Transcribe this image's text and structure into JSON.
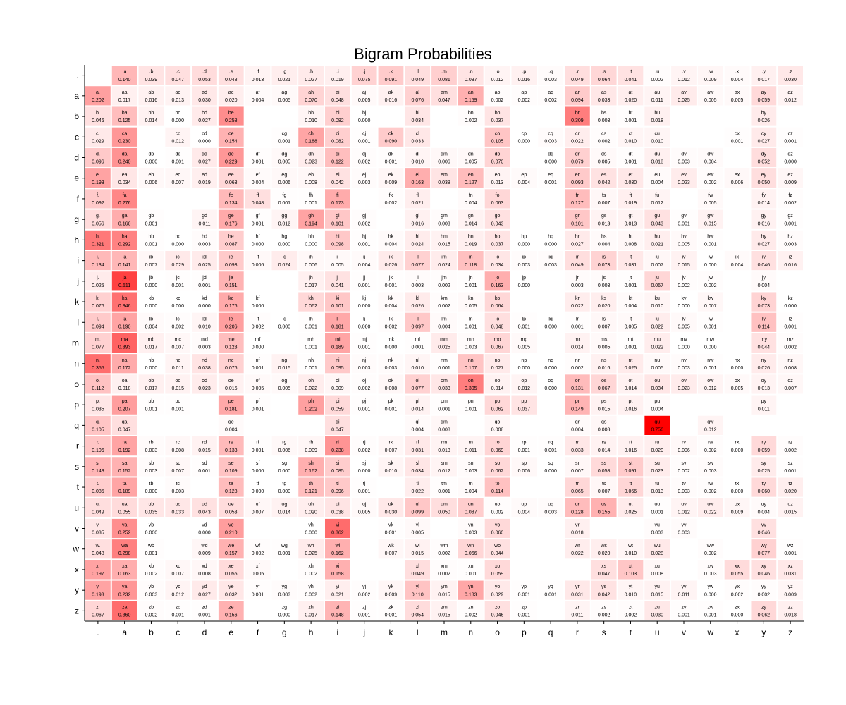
{
  "chart_data": {
    "type": "heatmap",
    "title": "Bigram Probabilities",
    "labels": [
      ".",
      "a",
      "b",
      "c",
      "d",
      "e",
      "f",
      "g",
      "h",
      "i",
      "j",
      "k",
      "l",
      "m",
      "n",
      "o",
      "p",
      "q",
      "r",
      "s",
      "t",
      "u",
      "v",
      "w",
      "x",
      "y",
      "z"
    ],
    "colormap": {
      "low": "#ffffff",
      "high": "#ff0000"
    },
    "value_range": [
      0,
      0.756
    ],
    "matrix": [
      [
        null,
        0.14,
        0.039,
        0.047,
        0.053,
        0.048,
        0.013,
        0.021,
        0.027,
        0.019,
        0.075,
        0.091,
        0.049,
        0.081,
        0.037,
        0.012,
        0.016,
        0.003,
        0.049,
        0.064,
        0.041,
        0.002,
        0.012,
        0.009,
        0.004,
        0.017,
        0.03
      ],
      [
        0.202,
        0.017,
        0.016,
        0.013,
        0.03,
        0.02,
        0.004,
        0.005,
        0.07,
        0.048,
        0.005,
        0.016,
        0.076,
        0.047,
        0.159,
        0.002,
        0.002,
        0.002,
        0.094,
        0.033,
        0.02,
        0.011,
        0.025,
        0.005,
        0.005,
        0.059,
        0.012
      ],
      [
        0.046,
        0.125,
        0.014,
        0.0,
        0.027,
        0.258,
        null,
        null,
        0.01,
        0.082,
        0.0,
        null,
        0.034,
        null,
        0.002,
        0.037,
        null,
        null,
        0.309,
        0.003,
        0.001,
        0.018,
        null,
        null,
        null,
        0.026,
        null
      ],
      [
        0.029,
        0.23,
        null,
        0.012,
        0.0,
        0.154,
        null,
        0.001,
        0.188,
        0.082,
        0.001,
        0.09,
        0.033,
        null,
        null,
        0.105,
        0.0,
        0.003,
        0.022,
        0.002,
        0.01,
        0.01,
        null,
        null,
        0.001,
        0.027,
        0.001
      ],
      [
        0.096,
        0.24,
        0.0,
        0.001,
        0.027,
        0.229,
        0.001,
        0.005,
        0.023,
        0.122,
        0.002,
        0.001,
        0.01,
        0.006,
        0.005,
        0.07,
        null,
        0.0,
        0.079,
        0.005,
        0.001,
        0.018,
        0.003,
        0.004,
        null,
        0.052,
        0.0
      ],
      [
        0.193,
        0.034,
        0.006,
        0.007,
        0.019,
        0.063,
        0.004,
        0.006,
        0.008,
        0.042,
        0.003,
        0.009,
        0.163,
        0.038,
        0.127,
        0.013,
        0.004,
        0.001,
        0.093,
        0.042,
        0.03,
        0.004,
        0.023,
        0.002,
        0.006,
        0.05,
        0.009
      ],
      [
        0.092,
        0.276,
        null,
        null,
        null,
        0.134,
        0.048,
        0.001,
        0.001,
        0.173,
        null,
        0.002,
        0.021,
        null,
        0.004,
        0.063,
        null,
        null,
        0.127,
        0.007,
        0.019,
        0.012,
        null,
        0.005,
        null,
        0.014,
        0.002
      ],
      [
        0.056,
        0.166,
        0.001,
        null,
        0.011,
        0.176,
        0.001,
        0.012,
        0.194,
        0.101,
        0.002,
        null,
        0.016,
        0.003,
        0.014,
        0.043,
        null,
        null,
        0.101,
        0.013,
        0.013,
        0.043,
        0.001,
        0.015,
        null,
        0.016,
        0.001
      ],
      [
        0.321,
        0.292,
        0.001,
        0.0,
        0.003,
        0.087,
        0.0,
        0.0,
        0.0,
        0.098,
        0.001,
        0.004,
        0.024,
        0.015,
        0.019,
        0.037,
        0.0,
        0.0,
        0.027,
        0.004,
        0.008,
        0.021,
        0.005,
        0.001,
        null,
        0.027,
        0.003
      ],
      [
        0.134,
        0.141,
        0.007,
        0.029,
        0.025,
        0.093,
        0.006,
        0.024,
        0.006,
        0.005,
        0.004,
        0.026,
        0.077,
        0.024,
        0.118,
        0.034,
        0.003,
        0.003,
        0.049,
        0.073,
        0.031,
        0.007,
        0.015,
        0.0,
        0.004,
        0.046,
        0.016
      ],
      [
        0.025,
        0.511,
        0.0,
        0.001,
        0.001,
        0.151,
        null,
        null,
        0.017,
        0.041,
        0.001,
        0.001,
        0.003,
        0.002,
        0.001,
        0.163,
        0.0,
        null,
        0.003,
        0.003,
        0.001,
        0.067,
        0.002,
        0.002,
        null,
        0.004,
        null
      ],
      [
        0.076,
        0.346,
        0.0,
        0.0,
        0.0,
        0.176,
        0.0,
        null,
        0.062,
        0.101,
        0.0,
        0.004,
        0.026,
        0.002,
        0.005,
        0.064,
        null,
        null,
        0.022,
        0.02,
        0.004,
        0.01,
        0.0,
        0.007,
        null,
        0.073,
        0.0
      ],
      [
        0.094,
        0.19,
        0.004,
        0.002,
        0.01,
        0.206,
        0.002,
        0.0,
        0.001,
        0.181,
        0.0,
        0.002,
        0.097,
        0.004,
        0.001,
        0.048,
        0.001,
        0.0,
        0.001,
        0.007,
        0.005,
        0.022,
        0.005,
        0.001,
        null,
        0.114,
        0.001
      ],
      [
        0.077,
        0.393,
        0.017,
        0.007,
        0.003,
        0.123,
        0.0,
        null,
        0.001,
        0.189,
        0.001,
        0.0,
        0.001,
        0.025,
        0.003,
        0.067,
        0.005,
        null,
        0.014,
        0.005,
        0.001,
        0.022,
        0.0,
        0.0,
        null,
        0.044,
        0.002
      ],
      [
        0.355,
        0.172,
        0.0,
        0.011,
        0.038,
        0.076,
        0.001,
        0.015,
        0.001,
        0.095,
        0.003,
        0.003,
        0.01,
        0.001,
        0.107,
        0.027,
        0.0,
        0.0,
        0.002,
        0.016,
        0.025,
        0.005,
        0.003,
        0.001,
        0.0,
        0.026,
        0.008
      ],
      [
        0.112,
        0.018,
        0.017,
        0.015,
        0.023,
        0.016,
        0.005,
        0.005,
        0.022,
        0.009,
        0.002,
        0.008,
        0.077,
        0.033,
        0.305,
        0.014,
        0.012,
        0.0,
        0.131,
        0.067,
        0.014,
        0.034,
        0.023,
        0.012,
        0.005,
        0.013,
        0.007
      ],
      [
        0.035,
        0.207,
        0.001,
        0.001,
        null,
        0.181,
        0.001,
        null,
        0.202,
        0.059,
        0.001,
        0.001,
        0.014,
        0.001,
        0.001,
        0.062,
        0.037,
        null,
        0.149,
        0.015,
        0.016,
        0.004,
        null,
        null,
        null,
        0.011,
        null
      ],
      [
        0.105,
        0.047,
        null,
        null,
        null,
        0.004,
        null,
        null,
        null,
        0.047,
        null,
        null,
        0.004,
        0.008,
        null,
        0.008,
        null,
        null,
        0.004,
        0.008,
        null,
        0.756,
        null,
        0.012,
        null,
        null,
        null
      ],
      [
        0.106,
        0.192,
        0.003,
        0.008,
        0.015,
        0.133,
        0.001,
        0.006,
        0.009,
        0.238,
        0.002,
        0.007,
        0.031,
        0.013,
        0.011,
        0.069,
        0.001,
        0.001,
        0.033,
        0.014,
        0.016,
        0.02,
        0.006,
        0.002,
        0.0,
        0.059,
        0.002
      ],
      [
        0.143,
        0.152,
        0.003,
        0.007,
        0.001,
        0.109,
        0.0,
        0.0,
        0.162,
        0.085,
        0.0,
        0.01,
        0.034,
        0.012,
        0.003,
        0.062,
        0.006,
        0.0,
        0.007,
        0.058,
        0.091,
        0.023,
        0.002,
        0.003,
        null,
        0.025,
        0.001
      ],
      [
        0.085,
        0.189,
        0.0,
        0.003,
        null,
        0.128,
        0.0,
        0.0,
        0.121,
        0.096,
        0.001,
        null,
        0.022,
        0.001,
        0.004,
        0.114,
        null,
        null,
        0.065,
        0.007,
        0.066,
        0.013,
        0.003,
        0.002,
        0.0,
        0.06,
        0.02
      ],
      [
        0.049,
        0.055,
        0.035,
        0.033,
        0.043,
        0.053,
        0.007,
        0.014,
        0.02,
        0.038,
        0.005,
        0.03,
        0.099,
        0.05,
        0.087,
        0.002,
        0.004,
        0.003,
        0.128,
        0.155,
        0.025,
        0.001,
        0.012,
        0.022,
        0.009,
        0.004,
        0.015
      ],
      [
        0.035,
        0.252,
        0.0,
        null,
        0.0,
        0.21,
        null,
        null,
        0.0,
        0.362,
        null,
        0.001,
        0.005,
        null,
        0.003,
        0.06,
        null,
        null,
        0.018,
        null,
        null,
        0.003,
        0.003,
        null,
        null,
        0.046,
        null
      ],
      [
        0.048,
        0.298,
        0.001,
        null,
        0.009,
        0.157,
        0.002,
        0.001,
        0.025,
        0.162,
        null,
        0.007,
        0.015,
        0.002,
        0.066,
        0.044,
        null,
        null,
        0.022,
        0.02,
        0.01,
        0.028,
        null,
        0.002,
        null,
        0.077,
        0.001
      ],
      [
        0.197,
        0.163,
        0.002,
        0.007,
        0.008,
        0.055,
        0.005,
        null,
        0.002,
        0.158,
        null,
        null,
        0.049,
        0.002,
        0.001,
        0.059,
        null,
        null,
        null,
        0.047,
        0.103,
        0.008,
        null,
        0.003,
        0.055,
        0.046,
        0.031
      ],
      [
        0.193,
        0.232,
        0.003,
        0.012,
        0.027,
        0.032,
        0.001,
        0.003,
        0.002,
        0.021,
        0.002,
        0.009,
        0.11,
        0.015,
        0.183,
        0.029,
        0.001,
        0.001,
        0.031,
        0.042,
        0.01,
        0.015,
        0.011,
        0.0,
        0.002,
        0.002,
        0.009
      ],
      [
        0.067,
        0.36,
        0.002,
        0.001,
        0.001,
        0.156,
        null,
        0.0,
        0.017,
        0.148,
        0.001,
        0.001,
        0.054,
        0.015,
        0.002,
        0.046,
        0.001,
        null,
        0.011,
        0.002,
        0.002,
        0.03,
        0.001,
        0.001,
        0.0,
        0.062,
        0.018
      ]
    ]
  }
}
